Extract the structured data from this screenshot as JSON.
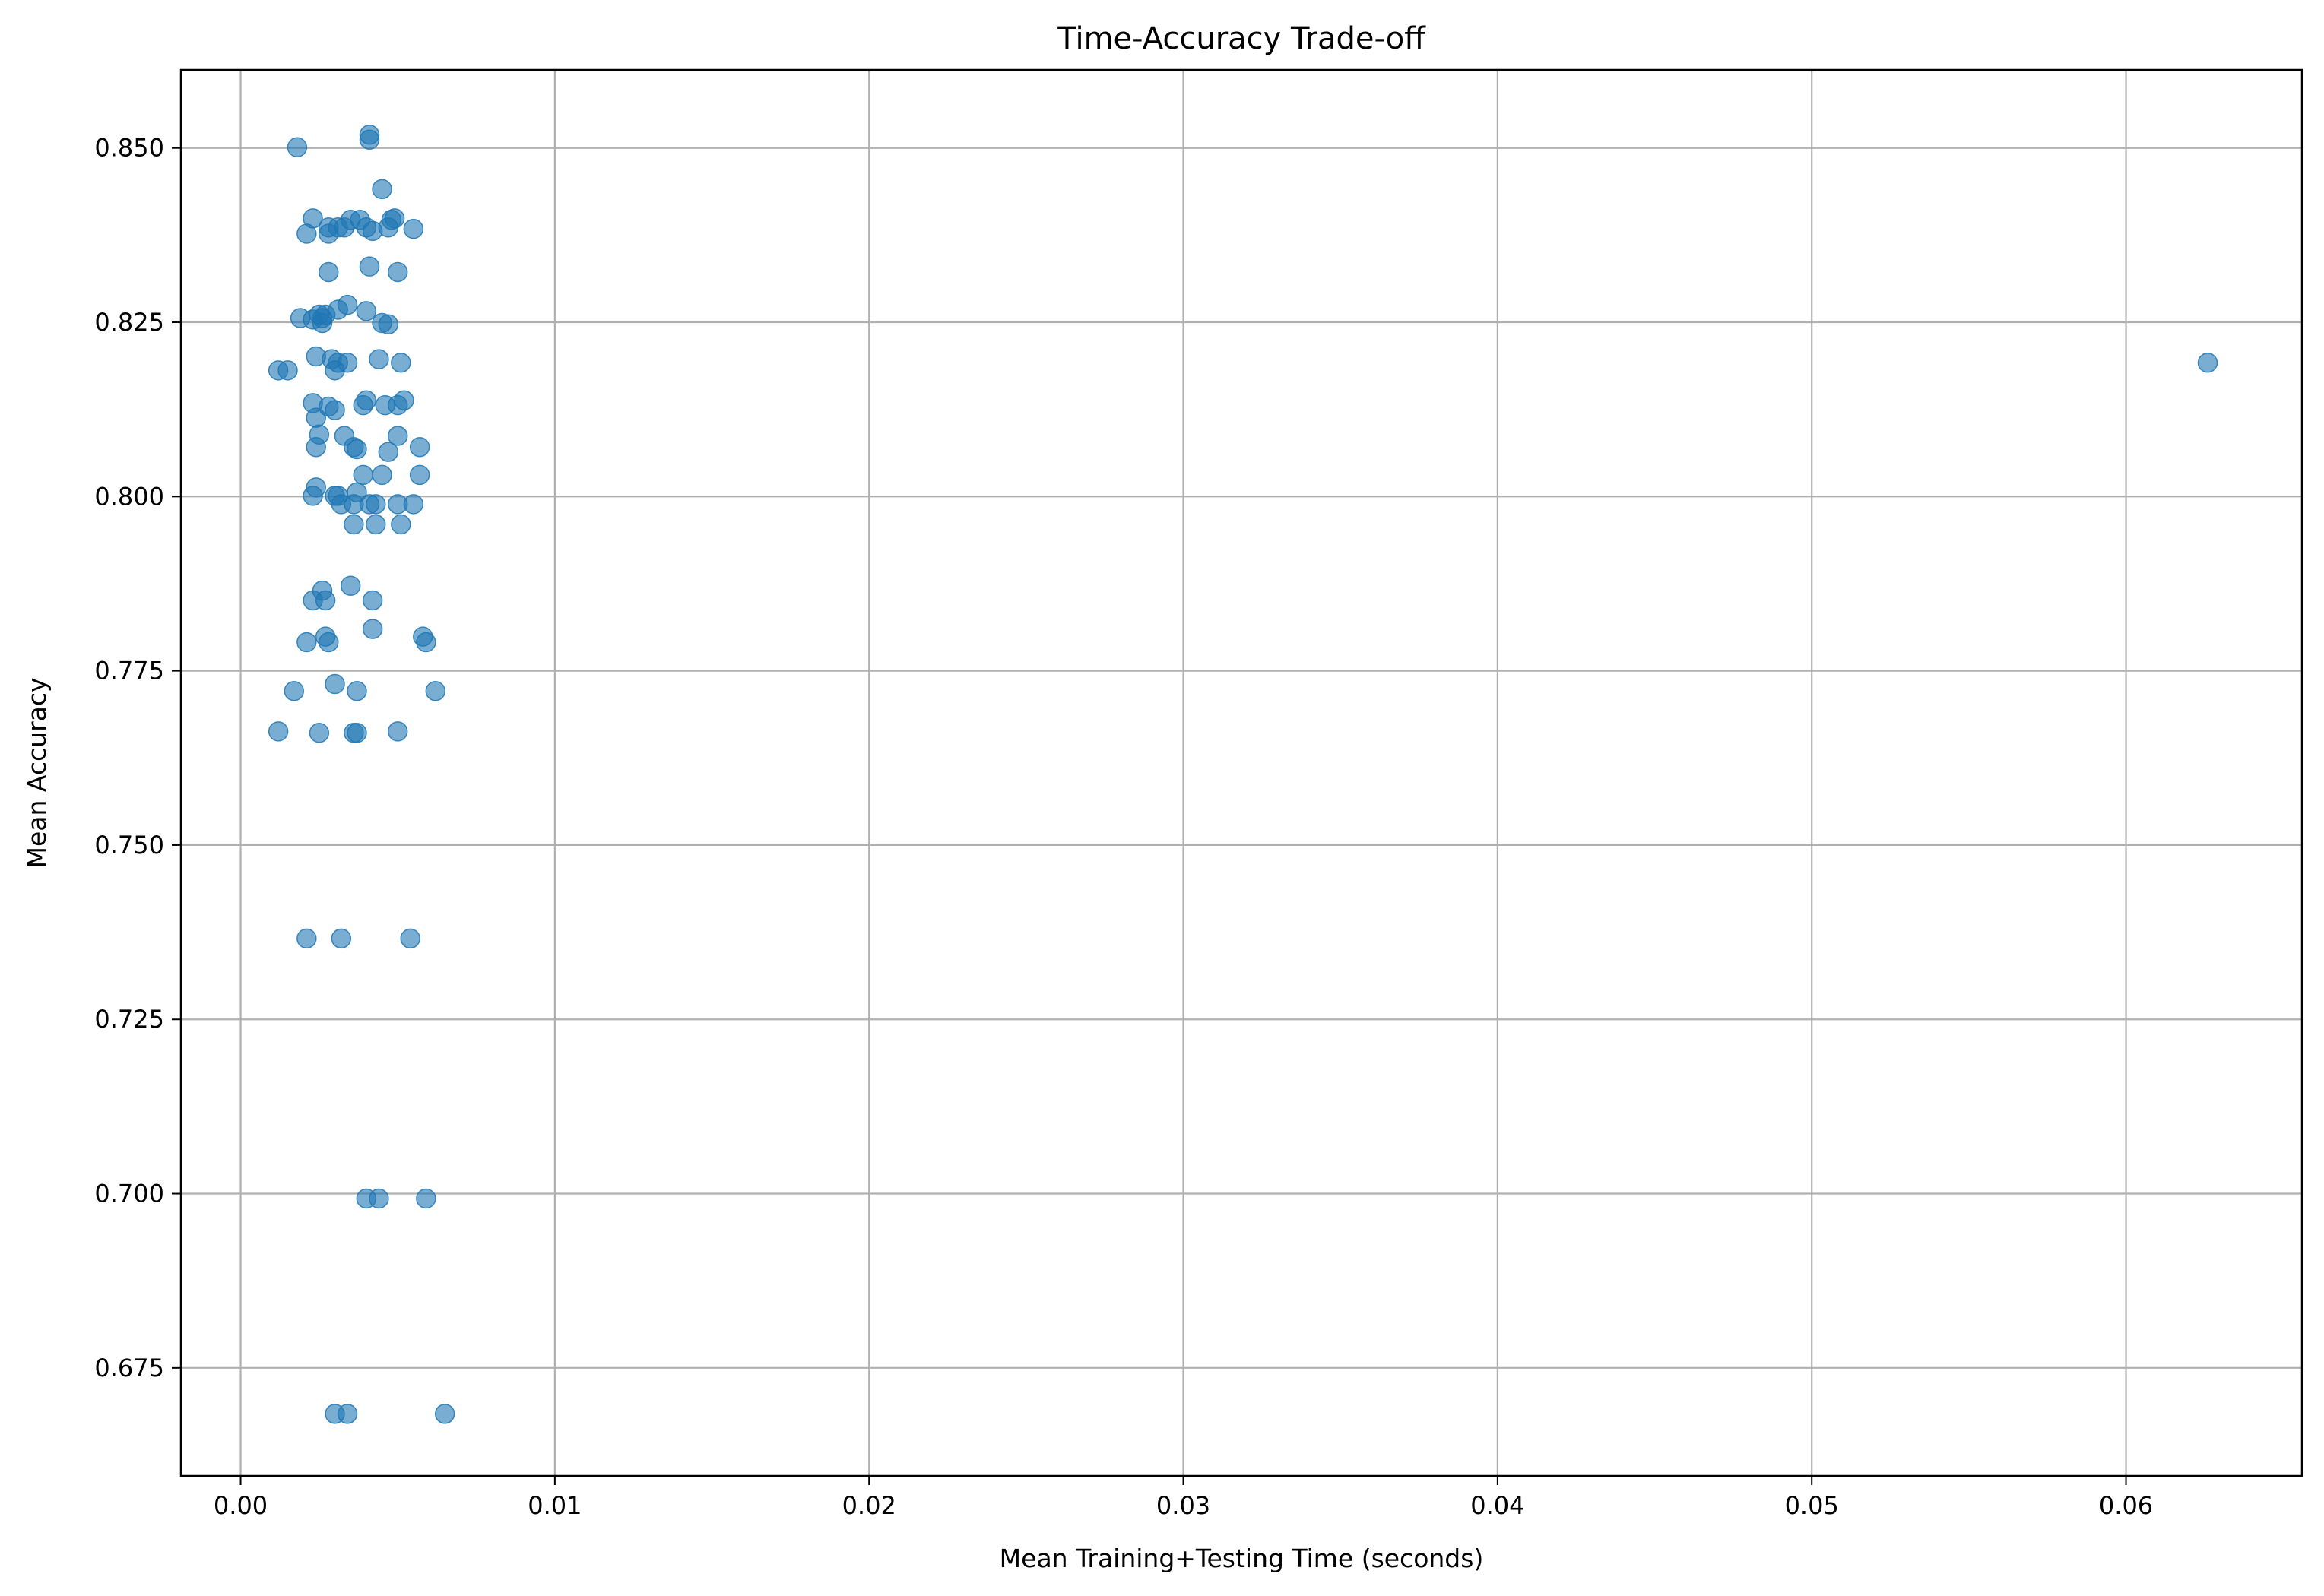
{
  "chart_data": {
    "type": "scatter",
    "title": "Time-Accuracy Trade-off",
    "xlabel": "Mean Training+Testing Time (seconds)",
    "ylabel": "Mean Accuracy",
    "xlim": [
      -0.0019,
      0.0656
    ],
    "ylim": [
      0.6595,
      0.8612
    ],
    "xticks": [
      0.0,
      0.01,
      0.02,
      0.03,
      0.04,
      0.05,
      0.06
    ],
    "xtick_labels": [
      "0.00",
      "0.01",
      "0.02",
      "0.03",
      "0.04",
      "0.05",
      "0.06"
    ],
    "yticks": [
      0.675,
      0.7,
      0.725,
      0.75,
      0.775,
      0.8,
      0.825,
      0.85
    ],
    "ytick_labels": [
      "0.675",
      "0.700",
      "0.725",
      "0.750",
      "0.775",
      "0.800",
      "0.825",
      "0.850"
    ],
    "grid": true,
    "marker_color": "#1f77b4",
    "marker_opacity": 0.6,
    "series": [
      {
        "x": [
          0.0018,
          0.0041,
          0.0041,
          0.0045,
          0.0023,
          0.0021,
          0.0028,
          0.0028,
          0.0031,
          0.0033,
          0.0035,
          0.0038,
          0.004,
          0.0042,
          0.0047,
          0.0048,
          0.0049,
          0.0055,
          0.0028,
          0.0041,
          0.005,
          0.0019,
          0.0023,
          0.0025,
          0.0026,
          0.0026,
          0.0027,
          0.0031,
          0.0034,
          0.004,
          0.0045,
          0.0047,
          0.0012,
          0.0015,
          0.0024,
          0.0029,
          0.0031,
          0.003,
          0.0034,
          0.0044,
          0.0051,
          0.0626,
          0.0023,
          0.0024,
          0.0028,
          0.003,
          0.0039,
          0.004,
          0.0046,
          0.005,
          0.0052,
          0.0025,
          0.0024,
          0.0033,
          0.0036,
          0.0037,
          0.0047,
          0.005,
          0.0057,
          0.0039,
          0.0045,
          0.0057,
          0.0024,
          0.0023,
          0.003,
          0.0031,
          0.0032,
          0.0036,
          0.0037,
          0.0041,
          0.0043,
          0.005,
          0.0055,
          0.0036,
          0.0043,
          0.0051,
          0.0035,
          0.0026,
          0.0023,
          0.0027,
          0.0042,
          0.0042,
          0.0021,
          0.0027,
          0.0028,
          0.0058,
          0.0059,
          0.0017,
          0.003,
          0.0037,
          0.0062,
          0.0012,
          0.0025,
          0.0036,
          0.0037,
          0.005,
          0.0021,
          0.0032,
          0.0054,
          0.004,
          0.0044,
          0.0059,
          0.003,
          0.0034,
          0.0065
        ],
        "y": [
          0.8501,
          0.8519,
          0.8512,
          0.8441,
          0.8399,
          0.8377,
          0.8377,
          0.8386,
          0.8386,
          0.8386,
          0.8397,
          0.8397,
          0.8386,
          0.8381,
          0.8386,
          0.8397,
          0.8399,
          0.8384,
          0.8322,
          0.833,
          0.8322,
          0.8256,
          0.8254,
          0.8261,
          0.8256,
          0.8249,
          0.8261,
          0.8268,
          0.8275,
          0.8266,
          0.8249,
          0.8247,
          0.8181,
          0.8181,
          0.8201,
          0.8197,
          0.8192,
          0.8181,
          0.8192,
          0.8197,
          0.8192,
          0.8192,
          0.8134,
          0.8113,
          0.8129,
          0.8124,
          0.8131,
          0.8138,
          0.8131,
          0.8131,
          0.8138,
          0.8089,
          0.8071,
          0.8087,
          0.8071,
          0.8068,
          0.8064,
          0.8087,
          0.8071,
          0.8031,
          0.8031,
          0.8031,
          0.8013,
          0.8001,
          0.8001,
          0.8001,
          0.7989,
          0.7989,
          0.8006,
          0.7989,
          0.7989,
          0.7989,
          0.7989,
          0.796,
          0.796,
          0.796,
          0.7872,
          0.7865,
          0.7851,
          0.7851,
          0.7851,
          0.781,
          0.7791,
          0.7799,
          0.7791,
          0.7799,
          0.7791,
          0.7721,
          0.7731,
          0.7721,
          0.7721,
          0.7663,
          0.7661,
          0.7661,
          0.7661,
          0.7663,
          0.7366,
          0.7366,
          0.7366,
          0.6993,
          0.6993,
          0.6993,
          0.6684,
          0.6684,
          0.6684
        ]
      }
    ]
  }
}
